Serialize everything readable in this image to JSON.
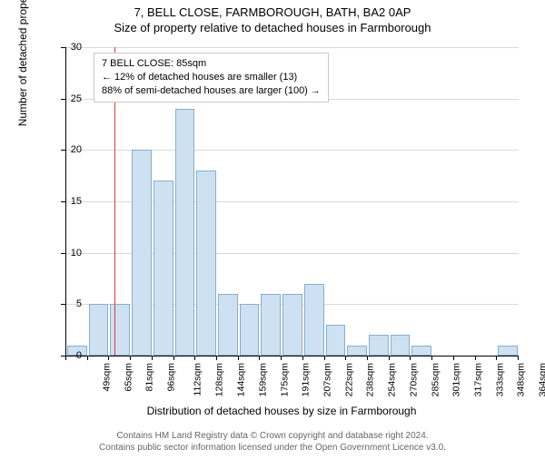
{
  "titles": {
    "line1": "7, BELL CLOSE, FARMBOROUGH, BATH, BA2 0AP",
    "line2": "Size of property relative to detached houses in Farmborough"
  },
  "legend": {
    "l1": "7 BELL CLOSE: 85sqm",
    "l2": "← 12% of detached houses are smaller (13)",
    "l3": "88% of semi-detached houses are larger (100) →"
  },
  "axes": {
    "ylabel": "Number of detached properties",
    "xlabel": "Distribution of detached houses by size in Farmborough",
    "ylim": [
      0,
      30
    ],
    "ytick_step": 5,
    "x_categories": [
      "49sqm",
      "65sqm",
      "81sqm",
      "96sqm",
      "112sqm",
      "128sqm",
      "144sqm",
      "159sqm",
      "175sqm",
      "191sqm",
      "207sqm",
      "222sqm",
      "238sqm",
      "254sqm",
      "270sqm",
      "285sqm",
      "301sqm",
      "317sqm",
      "333sqm",
      "348sqm",
      "364sqm"
    ]
  },
  "chart": {
    "type": "histogram",
    "bar_fill": "#cde1f2",
    "bar_stroke": "#87aed0",
    "grid_color": "#d9d9d9",
    "background": "#ffffff",
    "marker_color": "#e63939",
    "marker_x_index": 2.25,
    "values": [
      1,
      5,
      5,
      20,
      17,
      24,
      18,
      6,
      5,
      6,
      6,
      7,
      3,
      1,
      2,
      2,
      1,
      0,
      0,
      0,
      1
    ]
  },
  "footer": {
    "l1": "Contains HM Land Registry data © Crown copyright and database right 2024.",
    "l2": "Contains public sector information licensed under the Open Government Licence v3.0."
  }
}
